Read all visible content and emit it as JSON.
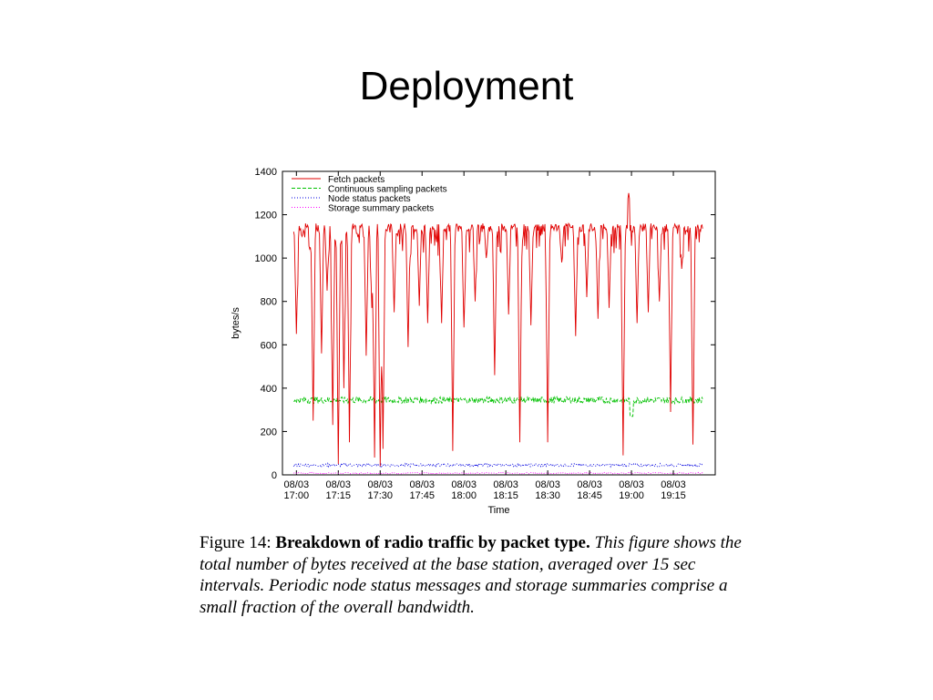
{
  "slide": {
    "title": "Deployment"
  },
  "caption": {
    "figure_label": "Figure 14:",
    "bold_text": "Breakdown of radio traffic by packet type.",
    "description": "This figure shows the total number of bytes received at the base station, averaged over 15 sec intervals. Periodic node status messages and storage summaries comprise a small fraction of the overall bandwidth."
  },
  "chart_data": {
    "type": "line",
    "xlabel": "Time",
    "ylabel": "bytes/s",
    "ylim": [
      0,
      1400
    ],
    "yticks": [
      0,
      200,
      400,
      600,
      800,
      1000,
      1200,
      1400
    ],
    "xticks": [
      {
        "date": "08/03",
        "time": "17:00"
      },
      {
        "date": "08/03",
        "time": "17:15"
      },
      {
        "date": "08/03",
        "time": "17:30"
      },
      {
        "date": "08/03",
        "time": "17:45"
      },
      {
        "date": "08/03",
        "time": "18:00"
      },
      {
        "date": "08/03",
        "time": "18:15"
      },
      {
        "date": "08/03",
        "time": "18:30"
      },
      {
        "date": "08/03",
        "time": "18:45"
      },
      {
        "date": "08/03",
        "time": "19:00"
      },
      {
        "date": "08/03",
        "time": "19:15"
      }
    ],
    "x_range_minutes": [
      -5,
      150
    ],
    "legend_position": "top-left",
    "series": [
      {
        "name": "Fetch packets",
        "color": "#e00000",
        "dash": "solid",
        "approx_level": 1180,
        "drops": [
          {
            "t": 0,
            "v": 650
          },
          {
            "t": 2,
            "v": 1100
          },
          {
            "t": 5,
            "v": 1050
          },
          {
            "t": 6,
            "v": 250
          },
          {
            "t": 9,
            "v": 560
          },
          {
            "t": 11,
            "v": 850
          },
          {
            "t": 13,
            "v": 230
          },
          {
            "t": 15,
            "v": 50
          },
          {
            "t": 17,
            "v": 400
          },
          {
            "t": 19,
            "v": 150
          },
          {
            "t": 22,
            "v": 1100
          },
          {
            "t": 25,
            "v": 550
          },
          {
            "t": 27,
            "v": 770
          },
          {
            "t": 28,
            "v": 80
          },
          {
            "t": 30,
            "v": 40
          },
          {
            "t": 31,
            "v": 120
          },
          {
            "t": 35,
            "v": 750
          },
          {
            "t": 40,
            "v": 590
          },
          {
            "t": 44,
            "v": 780
          },
          {
            "t": 47,
            "v": 700
          },
          {
            "t": 52,
            "v": 700
          },
          {
            "t": 56,
            "v": 110
          },
          {
            "t": 60,
            "v": 680
          },
          {
            "t": 64,
            "v": 800
          },
          {
            "t": 68,
            "v": 1000
          },
          {
            "t": 71,
            "v": 460
          },
          {
            "t": 76,
            "v": 740
          },
          {
            "t": 80,
            "v": 150
          },
          {
            "t": 84,
            "v": 690
          },
          {
            "t": 90,
            "v": 150
          },
          {
            "t": 95,
            "v": 980
          },
          {
            "t": 100,
            "v": 640
          },
          {
            "t": 104,
            "v": 820
          },
          {
            "t": 108,
            "v": 720
          },
          {
            "t": 112,
            "v": 770
          },
          {
            "t": 117,
            "v": 90
          },
          {
            "t": 122,
            "v": 700
          },
          {
            "t": 126,
            "v": 750
          },
          {
            "t": 130,
            "v": 800
          },
          {
            "t": 134,
            "v": 290
          },
          {
            "t": 138,
            "v": 950
          },
          {
            "t": 142,
            "v": 140
          },
          {
            "t": 145,
            "v": 1150
          }
        ],
        "spike": {
          "t": 119,
          "v": 1300
        }
      },
      {
        "name": "Continuous sampling packets",
        "color": "#00c000",
        "dash": "dashed",
        "approx_level": 345,
        "dip": {
          "t": 120,
          "v": 270
        }
      },
      {
        "name": "Node status packets",
        "color": "#0000e0",
        "dash": "dotted",
        "approx_level": 45
      },
      {
        "name": "Storage summary packets",
        "color": "#ff00ff",
        "dash": "dotted",
        "approx_level": 8
      }
    ]
  }
}
